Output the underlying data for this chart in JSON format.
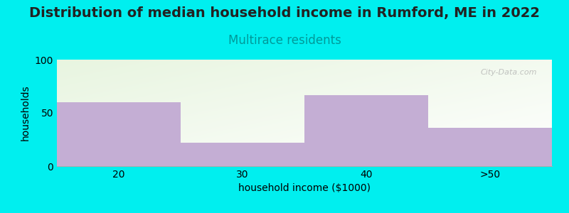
{
  "title": "Distribution of median household income in Rumford, ME in 2022",
  "subtitle": "Multirace residents",
  "categories": [
    "20",
    "30",
    "40",
    ">50"
  ],
  "values": [
    60,
    22,
    67,
    36
  ],
  "bar_color": "#c4aed4",
  "background_color": "#00efef",
  "plot_bg_topleft": "#e8f5e0",
  "plot_bg_bottomright": "#ffffff",
  "xlabel": "household income ($1000)",
  "ylabel": "households",
  "ylim": [
    0,
    100
  ],
  "yticks": [
    0,
    50,
    100
  ],
  "title_fontsize": 14,
  "subtitle_fontsize": 12,
  "subtitle_color": "#009999",
  "axis_label_fontsize": 10,
  "tick_fontsize": 10,
  "watermark": "City-Data.com",
  "title_color": "#222222"
}
